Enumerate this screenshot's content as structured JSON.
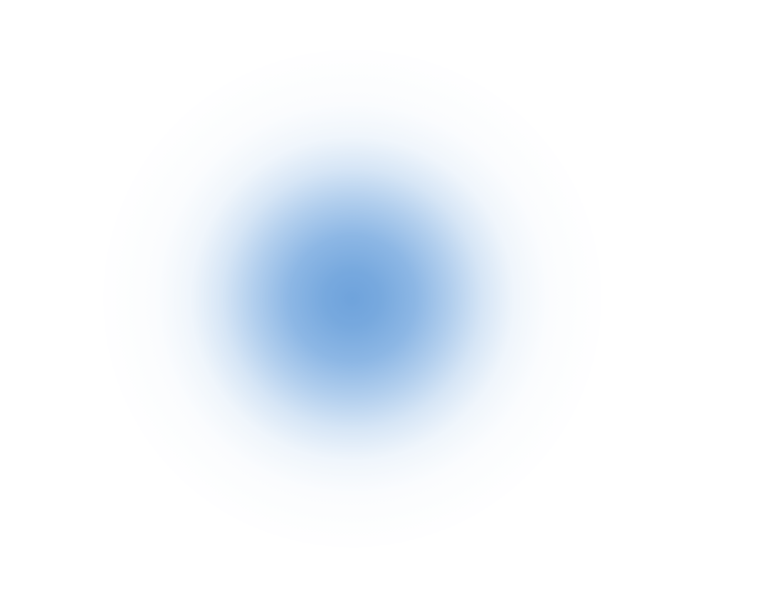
{
  "colors": {
    "background": "#ffffff",
    "glow_center": "#6fa3dc"
  }
}
